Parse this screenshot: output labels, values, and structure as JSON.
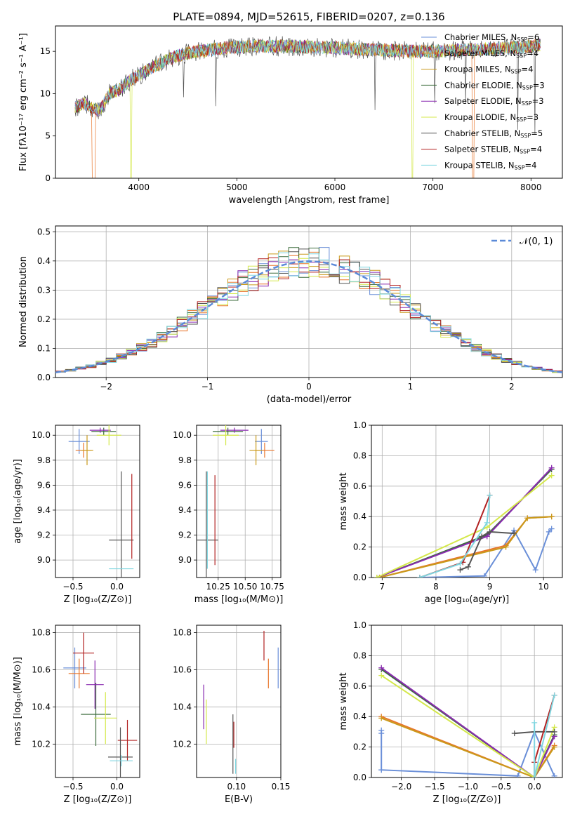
{
  "figure_title": "PLATE=0894, MJD=52615, FIBERID=0207, z=0.136",
  "colors": [
    "#6a8fd8",
    "#e8762c",
    "#c99a1a",
    "#3b6b3b",
    "#8a2bb0",
    "#d4e84a",
    "#555555",
    "#b22222",
    "#7fd6e0"
  ],
  "legend_models": [
    {
      "pre": "Chabrier MILES, N",
      "sub": "SSP",
      "post": "=6"
    },
    {
      "pre": "Salpeter MILES, N",
      "sub": "SSP",
      "post": "=4"
    },
    {
      "pre": "Kroupa MILES, N",
      "sub": "SSP",
      "post": "=4"
    },
    {
      "pre": "Chabrier ELODIE, N",
      "sub": "SSP",
      "post": "=3"
    },
    {
      "pre": "Salpeter ELODIE, N",
      "sub": "SSP",
      "post": "=3"
    },
    {
      "pre": "Kroupa ELODIE, N",
      "sub": "SSP",
      "post": "=3"
    },
    {
      "pre": "Chabrier STELIB, N",
      "sub": "SSP",
      "post": "=5"
    },
    {
      "pre": "Salpeter STELIB, N",
      "sub": "SSP",
      "post": "=4"
    },
    {
      "pre": "Kroupa STELIB, N",
      "sub": "SSP",
      "post": "=4"
    }
  ],
  "chart_data": [
    {
      "id": "spectrum",
      "type": "line",
      "xlabel": "wavelength [Angstrom, rest frame]",
      "ylabel": "Flux [fλ10⁻¹⁷ erg cm⁻² s⁻¹ A⁻¹]",
      "xlim": [
        3150,
        8320
      ],
      "ylim": [
        0,
        18
      ],
      "xticks": [
        4000,
        5000,
        6000,
        7000,
        8000
      ],
      "yticks": [
        0,
        5,
        10,
        15
      ],
      "data_x": [
        3350,
        3450,
        3600,
        3700,
        3800,
        3900,
        4000,
        4200,
        4400,
        4600,
        4800,
        5000,
        5200,
        5400,
        5600,
        5800,
        6000,
        6200,
        6400,
        6600,
        6800,
        7000,
        7200,
        7400,
        7600,
        7800,
        8000,
        8100
      ],
      "data_y": [
        8.4,
        8.8,
        8.0,
        10.0,
        10.5,
        11.5,
        12.2,
        13.5,
        14.5,
        15.0,
        15.3,
        15.5,
        15.6,
        15.6,
        15.6,
        15.5,
        15.4,
        15.3,
        15.2,
        15.1,
        15.0,
        15.0,
        15.1,
        15.2,
        15.3,
        15.4,
        15.6,
        15.8
      ]
    },
    {
      "id": "residuals",
      "type": "line",
      "xlabel": "(data-model)/error",
      "ylabel": "Normed distribution",
      "legend": "𝒩(0, 1)",
      "xlim": [
        -2.5,
        2.5
      ],
      "ylim": [
        0,
        0.52
      ],
      "xticks": [
        -2,
        -1,
        0,
        1,
        2
      ],
      "xticklabels": [
        "−2",
        "−1",
        "0",
        "1",
        "2"
      ],
      "yticks": [
        0.0,
        0.1,
        0.2,
        0.3,
        0.4,
        0.5
      ],
      "yticklabels": [
        "0.0",
        "0.1",
        "0.2",
        "0.3",
        "0.4",
        "0.5"
      ],
      "bin_width": 0.1,
      "gaussian": {
        "mean": 0,
        "sigma": 1
      },
      "grid": true
    },
    {
      "id": "age-vs-Z",
      "type": "scatter",
      "xlabel": "Z [log₁₀(Z/Z⊙)]",
      "ylabel": "age  [log₁₀(age/yr)]",
      "xlim": [
        -0.7,
        0.26
      ],
      "ylim": [
        8.86,
        10.08
      ],
      "xticks": [
        -0.5,
        0.0
      ],
      "xticklabels": [
        "−0.5",
        "0.0"
      ],
      "yticks": [
        9.0,
        9.2,
        9.4,
        9.6,
        9.8,
        10.0
      ],
      "yticklabels": [
        "9.0",
        "9.2",
        "9.4",
        "9.6",
        "9.8",
        "10.0"
      ],
      "points": [
        {
          "x": -0.43,
          "y": 9.95,
          "xerr": 0.12,
          "yerr": 0.1,
          "c": 0
        },
        {
          "x": -0.38,
          "y": 9.88,
          "xerr": 0.09,
          "yerr": 0.06,
          "c": 1
        },
        {
          "x": -0.34,
          "y": 9.88,
          "xerr": 0.07,
          "yerr": 0.12,
          "c": 2
        },
        {
          "x": -0.15,
          "y": 10.03,
          "xerr": 0.14,
          "yerr": 0.03,
          "c": 3
        },
        {
          "x": -0.19,
          "y": 10.04,
          "xerr": 0.12,
          "yerr": 0.02,
          "c": 4
        },
        {
          "x": -0.09,
          "y": 10.0,
          "xerr": 0.14,
          "yerr": 0.08,
          "c": 5
        },
        {
          "x": 0.05,
          "y": 9.16,
          "xerr": 0.14,
          "yerr": 0.55,
          "c": 6
        },
        {
          "x": 0.17,
          "y": 9.35,
          "xerr": 0.0,
          "yerr": 0.34,
          "c": 7
        },
        {
          "x": 0.05,
          "y": 8.93,
          "xerr": 0.14,
          "yerr": 0.0,
          "c": 8
        }
      ]
    },
    {
      "id": "age-vs-mass",
      "type": "scatter",
      "xlabel": "mass [log₁₀(M/M⊙)]",
      "ylabel": "",
      "xlim": [
        10.05,
        10.83
      ],
      "ylim": [
        8.86,
        10.08
      ],
      "xticks": [
        10.25,
        10.5,
        10.75
      ],
      "xticklabels": [
        "10.25",
        "10.50",
        "10.75"
      ],
      "yticks": [
        9.0,
        9.2,
        9.4,
        9.6,
        9.8,
        10.0
      ],
      "yticklabels": [
        "9.0",
        "9.2",
        "9.4",
        "9.6",
        "9.8",
        "10.0"
      ],
      "points": [
        {
          "x": 10.65,
          "y": 9.95,
          "xerr": 0.06,
          "yerr": 0.1,
          "c": 0
        },
        {
          "x": 10.68,
          "y": 9.88,
          "xerr": 0.09,
          "yerr": 0.06,
          "c": 1
        },
        {
          "x": 10.6,
          "y": 9.88,
          "xerr": 0.06,
          "yerr": 0.12,
          "c": 2
        },
        {
          "x": 10.34,
          "y": 10.03,
          "xerr": 0.14,
          "yerr": 0.03,
          "c": 3
        },
        {
          "x": 10.4,
          "y": 10.04,
          "xerr": 0.13,
          "yerr": 0.02,
          "c": 4
        },
        {
          "x": 10.32,
          "y": 10.0,
          "xerr": 0.12,
          "yerr": 0.08,
          "c": 5
        },
        {
          "x": 10.14,
          "y": 9.16,
          "xerr": 0.11,
          "yerr": 0.55,
          "c": 6
        },
        {
          "x": 10.22,
          "y": 9.32,
          "xerr": 0.0,
          "yerr": 0.36,
          "c": 7
        },
        {
          "x": 10.15,
          "y": 9.32,
          "xerr": 0.0,
          "yerr": 0.39,
          "c": 8
        }
      ]
    },
    {
      "id": "mass-weight-vs-age",
      "type": "line",
      "xlabel": "age  [log₁₀(age/yr)]",
      "ylabel": "mass weight",
      "xlim": [
        6.8,
        10.35
      ],
      "ylim": [
        0,
        1
      ],
      "xticks": [
        7,
        8,
        9,
        10
      ],
      "xticklabels": [
        "7",
        "8",
        "9",
        "10"
      ],
      "yticks": [
        0.0,
        0.2,
        0.4,
        0.6,
        0.8,
        1.0
      ],
      "yticklabels": [
        "0.0",
        "0.2",
        "0.4",
        "0.6",
        "0.8",
        "1.0"
      ],
      "grid": true,
      "series": [
        {
          "c": 0,
          "x": [
            7.7,
            8.9,
            9.45,
            9.85,
            10.1,
            10.15
          ],
          "y": [
            0.0,
            0.01,
            0.31,
            0.05,
            0.3,
            0.32
          ]
        },
        {
          "c": 1,
          "x": [
            6.95,
            9.3,
            9.7,
            10.15
          ],
          "y": [
            0.0,
            0.21,
            0.39,
            0.4
          ]
        },
        {
          "c": 2,
          "x": [
            6.95,
            9.3,
            9.7,
            10.15
          ],
          "y": [
            0.0,
            0.2,
            0.39,
            0.4
          ]
        },
        {
          "c": 3,
          "x": [
            6.9,
            8.95,
            10.15
          ],
          "y": [
            0.0,
            0.28,
            0.71
          ]
        },
        {
          "c": 4,
          "x": [
            6.9,
            8.95,
            10.15
          ],
          "y": [
            0.0,
            0.27,
            0.72
          ]
        },
        {
          "c": 5,
          "x": [
            6.9,
            8.95,
            10.15
          ],
          "y": [
            0.0,
            0.33,
            0.67
          ]
        },
        {
          "c": 6,
          "x": [
            8.45,
            8.6,
            8.85,
            9.0,
            9.45
          ],
          "y": [
            0.05,
            0.07,
            0.27,
            0.3,
            0.29
          ]
        },
        {
          "c": 7,
          "x": [
            7.7,
            8.5,
            9.0
          ],
          "y": [
            0.0,
            0.1,
            0.54
          ]
        },
        {
          "c": 8,
          "x": [
            7.7,
            8.45,
            8.95,
            9.0
          ],
          "y": [
            0.0,
            0.09,
            0.36,
            0.54
          ]
        }
      ]
    },
    {
      "id": "mass-vs-Z",
      "type": "scatter",
      "xlabel": "Z [log₁₀(Z/Z⊙)]",
      "ylabel": "mass [log₁₀(M/M⊙)]",
      "xlim": [
        -0.7,
        0.26
      ],
      "ylim": [
        10.02,
        10.84
      ],
      "xticks": [
        -0.5,
        0.0
      ],
      "xticklabels": [
        "−0.5",
        "0.0"
      ],
      "yticks": [
        10.2,
        10.4,
        10.6,
        10.8
      ],
      "yticklabels": [
        "10.2",
        "10.4",
        "10.6",
        "10.8"
      ],
      "points": [
        {
          "x": -0.48,
          "y": 10.61,
          "xerr": 0.13,
          "yerr": 0.11,
          "c": 0
        },
        {
          "x": -0.43,
          "y": 10.58,
          "xerr": 0.12,
          "yerr": 0.08,
          "c": 1
        },
        {
          "x": -0.38,
          "y": 10.69,
          "xerr": 0.12,
          "yerr": 0.11,
          "c": 7
        },
        {
          "x": -0.24,
          "y": 10.36,
          "xerr": 0.17,
          "yerr": 0.17,
          "c": 3
        },
        {
          "x": -0.25,
          "y": 10.52,
          "xerr": 0.1,
          "yerr": 0.13,
          "c": 4
        },
        {
          "x": -0.13,
          "y": 10.34,
          "xerr": 0.13,
          "yerr": 0.14,
          "c": 5
        },
        {
          "x": 0.12,
          "y": 10.22,
          "xerr": 0.11,
          "yerr": 0.11,
          "c": 7
        },
        {
          "x": 0.04,
          "y": 10.13,
          "xerr": 0.14,
          "yerr": 0.16,
          "c": 6
        },
        {
          "x": 0.05,
          "y": 10.11,
          "xerr": 0.13,
          "yerr": 0.03,
          "c": 8
        }
      ]
    },
    {
      "id": "mass-vs-EBV",
      "type": "scatter",
      "xlabel": "E(B-V)",
      "ylabel": "",
      "xlim": [
        0.055,
        0.15
      ],
      "ylim": [
        10.02,
        10.84
      ],
      "xticks": [
        0.1,
        0.15
      ],
      "xticklabels": [
        "0.10",
        "0.15"
      ],
      "yticks": [
        10.2,
        10.4,
        10.6,
        10.8
      ],
      "yticklabels": [
        "10.2",
        "10.4",
        "10.6",
        "10.8"
      ],
      "points": [
        {
          "x": 0.147,
          "y": 10.61,
          "xerr": 0,
          "yerr": 0.11,
          "c": 0
        },
        {
          "x": 0.136,
          "y": 10.58,
          "xerr": 0,
          "yerr": 0.08,
          "c": 1
        },
        {
          "x": 0.131,
          "y": 10.73,
          "xerr": 0,
          "yerr": 0.08,
          "c": 7
        },
        {
          "x": 0.063,
          "y": 10.4,
          "xerr": 0,
          "yerr": 0.12,
          "c": 4
        },
        {
          "x": 0.066,
          "y": 10.32,
          "xerr": 0,
          "yerr": 0.12,
          "c": 5
        },
        {
          "x": 0.096,
          "y": 10.2,
          "xerr": 0,
          "yerr": 0.16,
          "c": 6
        },
        {
          "x": 0.097,
          "y": 10.25,
          "xerr": 0,
          "yerr": 0.07,
          "c": 7
        },
        {
          "x": 0.099,
          "y": 10.08,
          "xerr": 0,
          "yerr": 0.04,
          "c": 8
        }
      ]
    },
    {
      "id": "mass-weight-vs-Z",
      "type": "line",
      "xlabel": "Z [log₁₀(Z/Z⊙)]",
      "ylabel": "mass weight",
      "xlim": [
        -2.45,
        0.42
      ],
      "ylim": [
        0,
        1
      ],
      "xticks": [
        -2.0,
        -1.5,
        -1.0,
        -0.5,
        0.0
      ],
      "xticklabels": [
        "−2.0",
        "−1.5",
        "−1.0",
        "−0.5",
        "0.0"
      ],
      "yticks": [
        0.0,
        0.2,
        0.4,
        0.6,
        0.8,
        1.0
      ],
      "yticklabels": [
        "0.0",
        "0.2",
        "0.4",
        "0.6",
        "0.8",
        "1.0"
      ],
      "grid": true,
      "series": [
        {
          "c": 0,
          "x": [
            -2.3,
            -2.3,
            -2.3,
            -2.3,
            -0.25,
            0.0,
            0.3
          ],
          "y": [
            0.31,
            0.29,
            0.05,
            0.05,
            0.01,
            0.3,
            0.01
          ]
        },
        {
          "c": 1,
          "x": [
            -2.3,
            0.0,
            0.3
          ],
          "y": [
            0.4,
            0.0,
            0.21
          ]
        },
        {
          "c": 2,
          "x": [
            -2.3,
            0.0,
            0.3
          ],
          "y": [
            0.39,
            0.0,
            0.2
          ]
        },
        {
          "c": 3,
          "x": [
            -2.3,
            0.0,
            0.3
          ],
          "y": [
            0.71,
            0.0,
            0.28
          ]
        },
        {
          "c": 4,
          "x": [
            -2.3,
            0.0,
            0.3
          ],
          "y": [
            0.72,
            0.0,
            0.27
          ]
        },
        {
          "c": 5,
          "x": [
            -2.3,
            0.0,
            0.3
          ],
          "y": [
            0.67,
            0.0,
            0.33
          ]
        },
        {
          "c": 6,
          "x": [
            -0.3,
            0.0,
            0.3
          ],
          "y": [
            0.29,
            0.3,
            0.3
          ]
        },
        {
          "c": 7,
          "x": [
            0.0,
            0.0,
            0.3
          ],
          "y": [
            0.0,
            0.1,
            0.54
          ]
        },
        {
          "c": 8,
          "x": [
            0.0,
            0.0,
            0.3
          ],
          "y": [
            0.36,
            0.0,
            0.54
          ]
        }
      ]
    }
  ]
}
